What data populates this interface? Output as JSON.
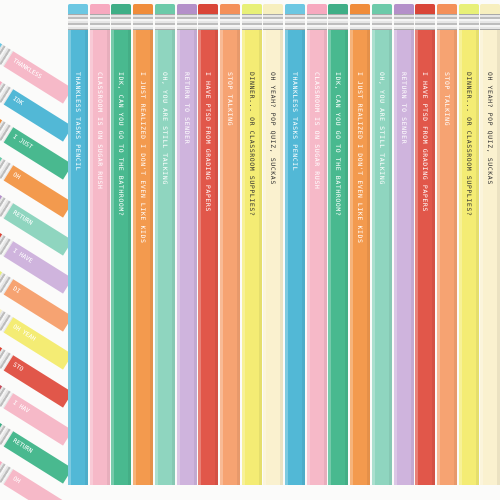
{
  "pencils": [
    {
      "label": "THANKLESS TASKS PENCIL",
      "body": "#52b8d6",
      "eraser": "#6cc7e2",
      "text": "#ffffff"
    },
    {
      "label": "CLASSROOM IS ON SUGAR RUSH",
      "body": "#f6b9c8",
      "eraser": "#f7a9bf",
      "text": "#ffffff"
    },
    {
      "label": "IDK, CAN YOU GO TO THE BATHROOM?",
      "body": "#49b98f",
      "eraser": "#3fae86",
      "text": "#ffffff"
    },
    {
      "label": "I JUST REALIZED I DON'T EVEN LIKE KIDS",
      "body": "#f39a4e",
      "eraser": "#f08c3a",
      "text": "#ffffff"
    },
    {
      "label": "OH, YOU ARE STILL TALKING",
      "body": "#8fd5bf",
      "eraser": "#6ccaa9",
      "text": "#ffffff"
    },
    {
      "label": "RETURN TO SENDER",
      "body": "#cfb4dd",
      "eraser": "#b490c9",
      "text": "#ffffff"
    },
    {
      "label": "I HAVE PTSD FROM GRADING PAPERS",
      "body": "#e1574a",
      "eraser": "#d94537",
      "text": "#ffffff"
    },
    {
      "label": "STOP TALKING",
      "body": "#f6a372",
      "eraser": "#f49059",
      "text": "#ffffff"
    },
    {
      "label": "DINNER... OR CLASSROOM SUPPLIES?",
      "body": "#f4ec74",
      "eraser": "#e8f078",
      "text": "#333333"
    },
    {
      "label": "OH YEAH? POP QUIZ, SUCKAS",
      "body": "#faf1cf",
      "eraser": "#f7efbf",
      "text": "#333333"
    },
    {
      "label": "THANKLESS TASKS PENCIL",
      "body": "#52b8d6",
      "eraser": "#6cc7e2",
      "text": "#ffffff"
    },
    {
      "label": "CLASSROOM IS ON SUGAR RUSH",
      "body": "#f6b9c8",
      "eraser": "#f7a9bf",
      "text": "#ffffff"
    },
    {
      "label": "IDK, CAN YOU GO TO THE BATHROOM?",
      "body": "#49b98f",
      "eraser": "#3fae86",
      "text": "#ffffff"
    },
    {
      "label": "I JUST REALIZED I DON'T EVEN LIKE KIDS",
      "body": "#f39a4e",
      "eraser": "#f08c3a",
      "text": "#ffffff"
    },
    {
      "label": "OH, YOU ARE STILL TALKING",
      "body": "#8fd5bf",
      "eraser": "#6ccaa9",
      "text": "#ffffff"
    },
    {
      "label": "RETURN TO SENDER",
      "body": "#cfb4dd",
      "eraser": "#b490c9",
      "text": "#ffffff"
    },
    {
      "label": "I HAVE PTSD FROM GRADING PAPERS",
      "body": "#e1574a",
      "eraser": "#d94537",
      "text": "#ffffff"
    },
    {
      "label": "STOP TALKING",
      "body": "#f6a372",
      "eraser": "#f49059",
      "text": "#ffffff"
    },
    {
      "label": "DINNER... OR CLASSROOM SUPPLIES?",
      "body": "#f4ec74",
      "eraser": "#e8f078",
      "text": "#333333"
    },
    {
      "label": "OH YEAH? POP QUIZ, SUCKAS",
      "body": "#faf1cf",
      "eraser": "#f7efbf",
      "text": "#333333"
    }
  ],
  "left_pencils": [
    {
      "label": "THANKLESS",
      "body": "#f6b9c8",
      "eraser": "#6cc7e2"
    },
    {
      "label": "IDK",
      "body": "#52b8d6",
      "eraser": "#f7a9bf"
    },
    {
      "label": "I JUST",
      "body": "#49b98f",
      "eraser": "#f08c3a"
    },
    {
      "label": "OH",
      "body": "#f39a4e",
      "eraser": "#6ccaa9"
    },
    {
      "label": "RETURN",
      "body": "#8fd5bf",
      "eraser": "#b490c9"
    },
    {
      "label": "I HAVE",
      "body": "#cfb4dd",
      "eraser": "#d94537"
    },
    {
      "label": "DI",
      "body": "#f6a372",
      "eraser": "#e8f078"
    },
    {
      "label": "OH YEAH",
      "body": "#f4ec74",
      "eraser": "#f7efbf"
    },
    {
      "label": "STO",
      "body": "#e1574a",
      "eraser": "#d94537"
    },
    {
      "label": "I HAV",
      "body": "#f6b9c8",
      "eraser": "#c44a5a"
    },
    {
      "label": "RETURN",
      "body": "#49b98f",
      "eraser": "#3fae86"
    },
    {
      "label": "OH",
      "body": "#f6b9c8",
      "eraser": "#f7a9bf"
    }
  ]
}
